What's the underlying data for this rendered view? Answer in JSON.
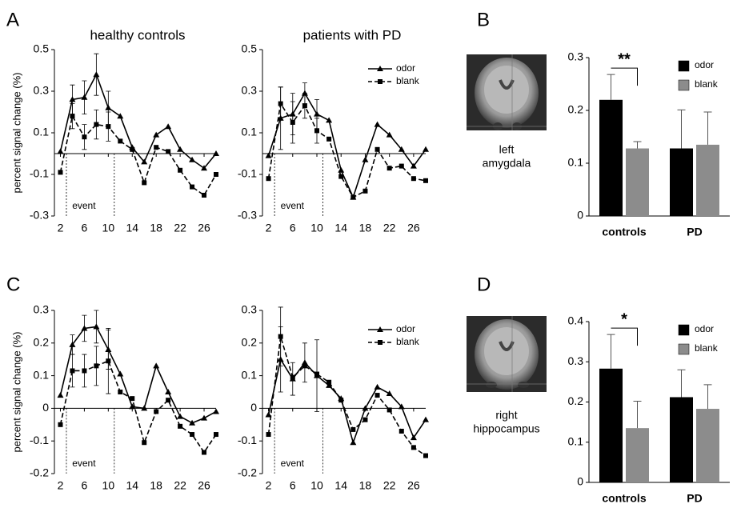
{
  "chart_data": [
    {
      "type": "line",
      "panel": "A",
      "title": "healthy controls",
      "y_label": "percent signal change (%)",
      "x": [
        2,
        4,
        6,
        8,
        10,
        12,
        14,
        16,
        18,
        20,
        22,
        24,
        26,
        28
      ],
      "xlim": [
        1,
        28
      ],
      "xticks": [
        2,
        6,
        10,
        14,
        18,
        22,
        26
      ],
      "ylim": [
        -0.3,
        0.5
      ],
      "yticks": [
        -0.3,
        -0.1,
        0.1,
        0.3,
        0.5
      ],
      "event": {
        "label": "event",
        "start": 3,
        "end": 11
      },
      "series": [
        {
          "name": "odor",
          "color": "#000000",
          "dashed": false,
          "marker": "triangle",
          "values": [
            0.01,
            0.26,
            0.27,
            0.38,
            0.22,
            0.18,
            0.03,
            -0.04,
            0.09,
            0.13,
            0.02,
            -0.03,
            -0.07,
            0.0
          ],
          "errors": [
            null,
            0.07,
            0.08,
            0.1,
            0.08,
            null,
            null,
            null,
            null,
            null,
            null,
            null,
            null,
            null
          ]
        },
        {
          "name": "blank",
          "color": "#000000",
          "dashed": true,
          "marker": "square",
          "values": [
            -0.09,
            0.18,
            0.08,
            0.14,
            0.13,
            0.06,
            0.02,
            -0.14,
            0.03,
            0.01,
            -0.08,
            -0.16,
            -0.2,
            -0.1
          ],
          "errors": [
            null,
            0.06,
            0.06,
            0.07,
            0.07,
            null,
            null,
            null,
            null,
            null,
            null,
            null,
            null,
            null
          ]
        }
      ]
    },
    {
      "type": "line",
      "title": "patients with PD",
      "x": [
        2,
        4,
        6,
        8,
        10,
        12,
        14,
        16,
        18,
        20,
        22,
        24,
        26,
        28
      ],
      "xlim": [
        1,
        28
      ],
      "xticks": [
        2,
        6,
        10,
        14,
        18,
        22,
        26
      ],
      "ylim": [
        -0.3,
        0.5
      ],
      "yticks": [
        -0.3,
        -0.1,
        0.1,
        0.3,
        0.5
      ],
      "legend": "upper right",
      "event": {
        "label": "event",
        "start": 3,
        "end": 11
      },
      "series": [
        {
          "name": "odor",
          "color": "#000000",
          "dashed": false,
          "marker": "triangle",
          "values": [
            -0.01,
            0.17,
            0.19,
            0.29,
            0.19,
            0.16,
            -0.08,
            -0.21,
            -0.03,
            0.14,
            0.09,
            0.02,
            -0.06,
            0.02
          ],
          "errors": [
            null,
            0.15,
            0.1,
            0.05,
            0.07,
            null,
            null,
            null,
            null,
            null,
            null,
            null,
            null,
            null
          ]
        },
        {
          "name": "blank",
          "color": "#000000",
          "dashed": true,
          "marker": "square",
          "values": [
            -0.12,
            0.24,
            0.15,
            0.23,
            0.11,
            0.07,
            -0.11,
            -0.21,
            -0.18,
            0.02,
            -0.07,
            -0.06,
            -0.12,
            -0.13
          ],
          "errors": [
            null,
            0.08,
            0.1,
            0.06,
            0.06,
            null,
            null,
            null,
            null,
            null,
            null,
            null,
            null,
            null
          ]
        }
      ]
    },
    {
      "type": "bar",
      "panel": "B",
      "image_label": [
        "left",
        "amygdala"
      ],
      "categories": [
        "controls",
        "PD"
      ],
      "ylim": [
        0,
        0.3
      ],
      "yticks": [
        0,
        0.1,
        0.2,
        0.3
      ],
      "legend": "upper right",
      "annotation": {
        "text": "**",
        "category": 0
      },
      "series": [
        {
          "name": "odor",
          "color": "#000000",
          "values": [
            0.22,
            0.128
          ],
          "errors": [
            0.048,
            0.073
          ]
        },
        {
          "name": "blank",
          "color": "#8c8c8c",
          "values": [
            0.128,
            0.135
          ],
          "errors": [
            0.013,
            0.062
          ]
        }
      ]
    },
    {
      "type": "line",
      "panel": "C",
      "y_label": "percent signal change (%)",
      "x": [
        2,
        4,
        6,
        8,
        10,
        12,
        14,
        16,
        18,
        20,
        22,
        24,
        26,
        28
      ],
      "xlim": [
        1,
        28
      ],
      "xticks": [
        2,
        6,
        10,
        14,
        18,
        22,
        26
      ],
      "ylim": [
        -0.2,
        0.3
      ],
      "yticks": [
        -0.2,
        -0.1,
        0,
        0.1,
        0.2,
        0.3
      ],
      "event": {
        "label": "event",
        "start": 3,
        "end": 11
      },
      "series": [
        {
          "name": "odor",
          "color": "#000000",
          "dashed": false,
          "marker": "triangle",
          "values": [
            0.04,
            0.195,
            0.245,
            0.25,
            0.18,
            0.105,
            0.005,
            0.0,
            0.13,
            0.05,
            -0.025,
            -0.045,
            -0.03,
            -0.01
          ],
          "errors": [
            null,
            0.03,
            0.04,
            0.05,
            0.06,
            null,
            null,
            null,
            null,
            null,
            null,
            null,
            null,
            null
          ]
        },
        {
          "name": "blank",
          "color": "#000000",
          "dashed": true,
          "marker": "square",
          "values": [
            -0.05,
            0.115,
            0.115,
            0.13,
            0.145,
            0.05,
            0.03,
            -0.105,
            -0.01,
            0.025,
            -0.055,
            -0.08,
            -0.135,
            -0.08
          ],
          "errors": [
            null,
            0.05,
            0.05,
            0.06,
            0.1,
            null,
            null,
            null,
            null,
            null,
            null,
            null,
            null,
            null
          ]
        }
      ]
    },
    {
      "type": "line",
      "x": [
        2,
        4,
        6,
        8,
        10,
        12,
        14,
        16,
        18,
        20,
        22,
        24,
        26,
        28
      ],
      "xlim": [
        1,
        28
      ],
      "xticks": [
        2,
        6,
        10,
        14,
        18,
        22,
        26
      ],
      "ylim": [
        -0.2,
        0.3
      ],
      "yticks": [
        -0.2,
        -0.1,
        0,
        0.1,
        0.2,
        0.3
      ],
      "legend": "upper right",
      "event": {
        "label": "event",
        "start": 3,
        "end": 11
      },
      "series": [
        {
          "name": "odor",
          "color": "#000000",
          "dashed": false,
          "marker": "triangle",
          "values": [
            -0.02,
            0.15,
            0.09,
            0.14,
            0.1,
            0.07,
            0.03,
            -0.105,
            0.0,
            0.065,
            0.045,
            0.005,
            -0.09,
            -0.035
          ],
          "errors": [
            null,
            0.1,
            0.05,
            0.06,
            0.11,
            null,
            null,
            null,
            null,
            null,
            null,
            null,
            null,
            null
          ]
        },
        {
          "name": "blank",
          "color": "#000000",
          "dashed": true,
          "marker": "square",
          "values": [
            -0.08,
            0.22,
            0.095,
            0.13,
            0.105,
            0.08,
            0.025,
            -0.065,
            -0.035,
            0.04,
            -0.005,
            -0.07,
            -0.12,
            -0.145
          ],
          "errors": [
            null,
            0.09,
            null,
            null,
            null,
            null,
            null,
            null,
            null,
            null,
            null,
            null,
            null,
            null
          ]
        }
      ]
    },
    {
      "type": "bar",
      "panel": "D",
      "image_label": [
        "right",
        "hippocampus"
      ],
      "categories": [
        "controls",
        "PD"
      ],
      "ylim": [
        0,
        0.4
      ],
      "yticks": [
        0,
        0.1,
        0.2,
        0.3,
        0.4
      ],
      "legend": "upper right",
      "annotation": {
        "text": "*",
        "category": 0
      },
      "series": [
        {
          "name": "odor",
          "color": "#000000",
          "values": [
            0.283,
            0.212
          ],
          "errors": [
            0.085,
            0.068
          ]
        },
        {
          "name": "blank",
          "color": "#8c8c8c",
          "values": [
            0.135,
            0.183
          ],
          "errors": [
            0.067,
            0.06
          ]
        }
      ]
    }
  ]
}
